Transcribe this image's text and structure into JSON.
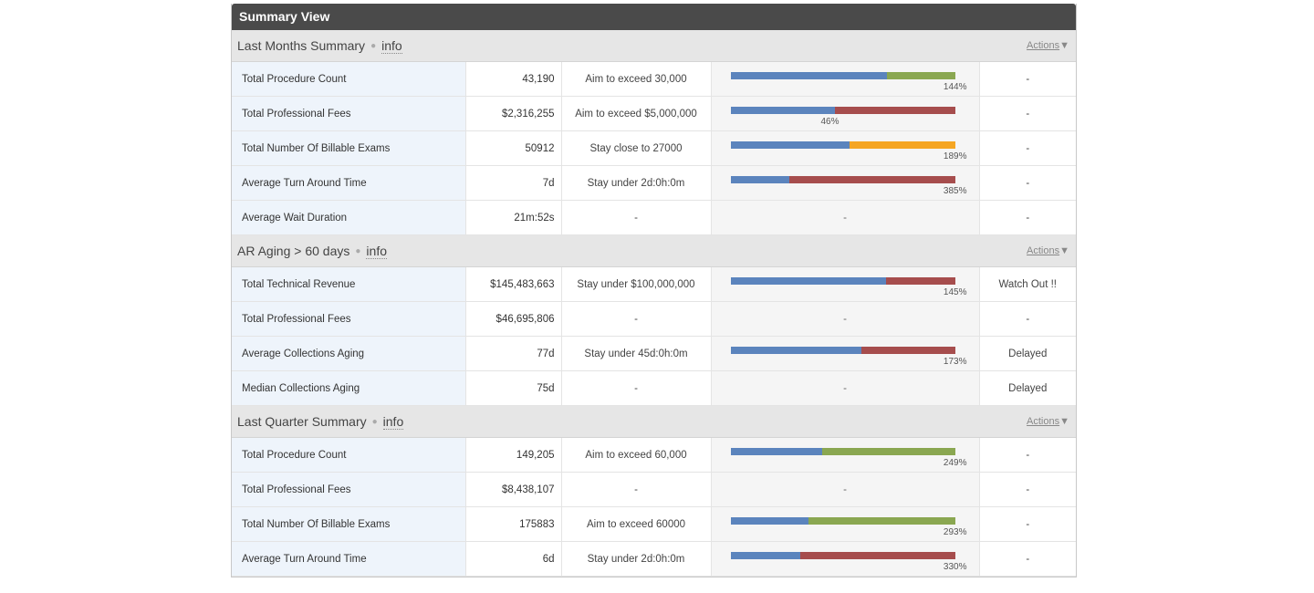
{
  "panel_title": "Summary View",
  "colors": {
    "primary": "#5b84bd",
    "exceed": "#8aa751",
    "under": "#a64d4d",
    "close": "#f5a623"
  },
  "sections": [
    {
      "title": "Last Months Summary",
      "info": "info",
      "actions": "Actions",
      "rows": [
        {
          "name": "Total Procedure Count",
          "value": "43,190",
          "target": "Aim to exceed 30,000",
          "bar": {
            "blue": 0.694,
            "other": "exceed"
          },
          "pct": "144%",
          "status": "-"
        },
        {
          "name": "Total Professional Fees",
          "value": "$2,316,255",
          "target": "Aim to exceed $5,000,000",
          "bar": {
            "blue": 0.463,
            "other": "under"
          },
          "pct": "46%",
          "pct_mid": true,
          "status": "-"
        },
        {
          "name": "Total Number Of Billable Exams",
          "value": "50912",
          "target": "Stay close to 27000",
          "bar": {
            "blue": 0.53,
            "other": "close"
          },
          "pct": "189%",
          "status": "-"
        },
        {
          "name": "Average Turn Around Time",
          "value": "7d",
          "target": "Stay under 2d:0h:0m",
          "bar": {
            "blue": 0.26,
            "other": "under"
          },
          "pct": "385%",
          "status": "-"
        },
        {
          "name": "Average Wait Duration",
          "value": "21m:52s",
          "target": "-",
          "bar": null,
          "pct": "",
          "chart_placeholder": "-",
          "status": "-"
        }
      ]
    },
    {
      "title": "AR Aging > 60 days",
      "info": "info",
      "actions": "Actions",
      "rows": [
        {
          "name": "Total Technical Revenue",
          "value": "$145,483,663",
          "target": "Stay under $100,000,000",
          "bar": {
            "blue": 0.69,
            "other": "under"
          },
          "pct": "145%",
          "status": "Watch Out !!"
        },
        {
          "name": "Total Professional Fees",
          "value": "$46,695,806",
          "target": "-",
          "bar": null,
          "pct": "",
          "chart_placeholder": "-",
          "status": "-"
        },
        {
          "name": "Average Collections Aging",
          "value": "77d",
          "target": "Stay under 45d:0h:0m",
          "bar": {
            "blue": 0.58,
            "other": "under"
          },
          "pct": "173%",
          "status": "Delayed"
        },
        {
          "name": "Median Collections Aging",
          "value": "75d",
          "target": "-",
          "bar": null,
          "pct": "",
          "chart_placeholder": "-",
          "status": "Delayed"
        }
      ]
    },
    {
      "title": "Last Quarter Summary",
      "info": "info",
      "actions": "Actions",
      "rows": [
        {
          "name": "Total Procedure Count",
          "value": "149,205",
          "target": "Aim to exceed 60,000",
          "bar": {
            "blue": 0.405,
            "other": "exceed"
          },
          "pct": "249%",
          "status": "-"
        },
        {
          "name": "Total Professional Fees",
          "value": "$8,438,107",
          "target": "-",
          "bar": null,
          "pct": "",
          "chart_placeholder": "-",
          "status": "-"
        },
        {
          "name": "Total Number Of Billable Exams",
          "value": "175883",
          "target": "Aim to exceed 60000",
          "bar": {
            "blue": 0.345,
            "other": "exceed"
          },
          "pct": "293%",
          "status": "-"
        },
        {
          "name": "Average Turn Around Time",
          "value": "6d",
          "target": "Stay under 2d:0h:0m",
          "bar": {
            "blue": 0.31,
            "other": "under"
          },
          "pct": "330%",
          "status": "-"
        }
      ]
    }
  ]
}
